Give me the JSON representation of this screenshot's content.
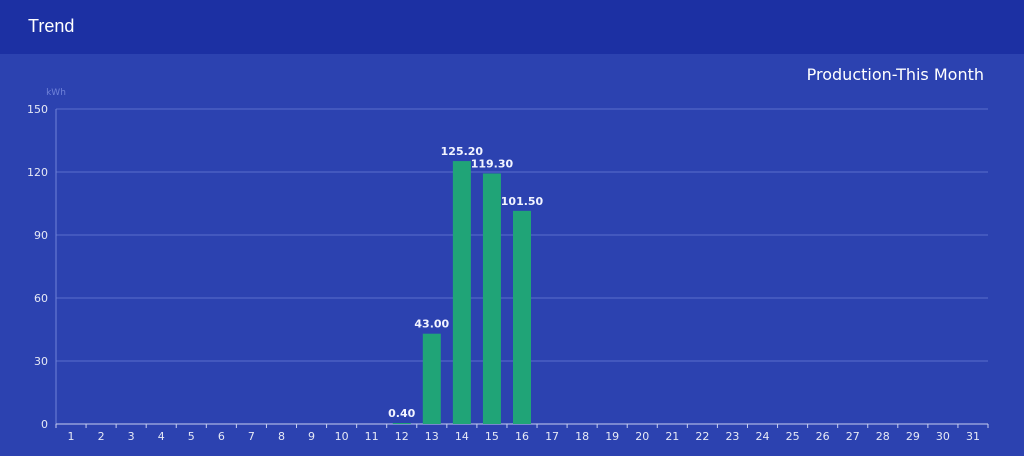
{
  "header": {
    "title": "Trend"
  },
  "colors": {
    "background": "#2c42b0",
    "header": "#1c30a3",
    "bar": "#20a477",
    "grid": "#5a6fcb"
  },
  "chart_data": {
    "type": "bar",
    "title": "Production-This Month",
    "ylabel": "kWh",
    "xlabel": "",
    "ylim": [
      0,
      150
    ],
    "yticks": [
      0,
      30,
      60,
      90,
      120,
      150
    ],
    "categories": [
      "1",
      "2",
      "3",
      "4",
      "5",
      "6",
      "7",
      "8",
      "9",
      "10",
      "11",
      "12",
      "13",
      "14",
      "15",
      "16",
      "17",
      "18",
      "19",
      "20",
      "21",
      "22",
      "23",
      "24",
      "25",
      "26",
      "27",
      "28",
      "29",
      "30",
      "31"
    ],
    "values": [
      null,
      null,
      null,
      null,
      null,
      null,
      null,
      null,
      null,
      null,
      null,
      0.4,
      43.0,
      125.2,
      119.3,
      101.5,
      null,
      null,
      null,
      null,
      null,
      null,
      null,
      null,
      null,
      null,
      null,
      null,
      null,
      null,
      null
    ],
    "data_labels": {
      "12": "0.40",
      "13": "43.00",
      "14": "125.20",
      "15": "119.30",
      "16": "101.50"
    },
    "grid": true
  }
}
